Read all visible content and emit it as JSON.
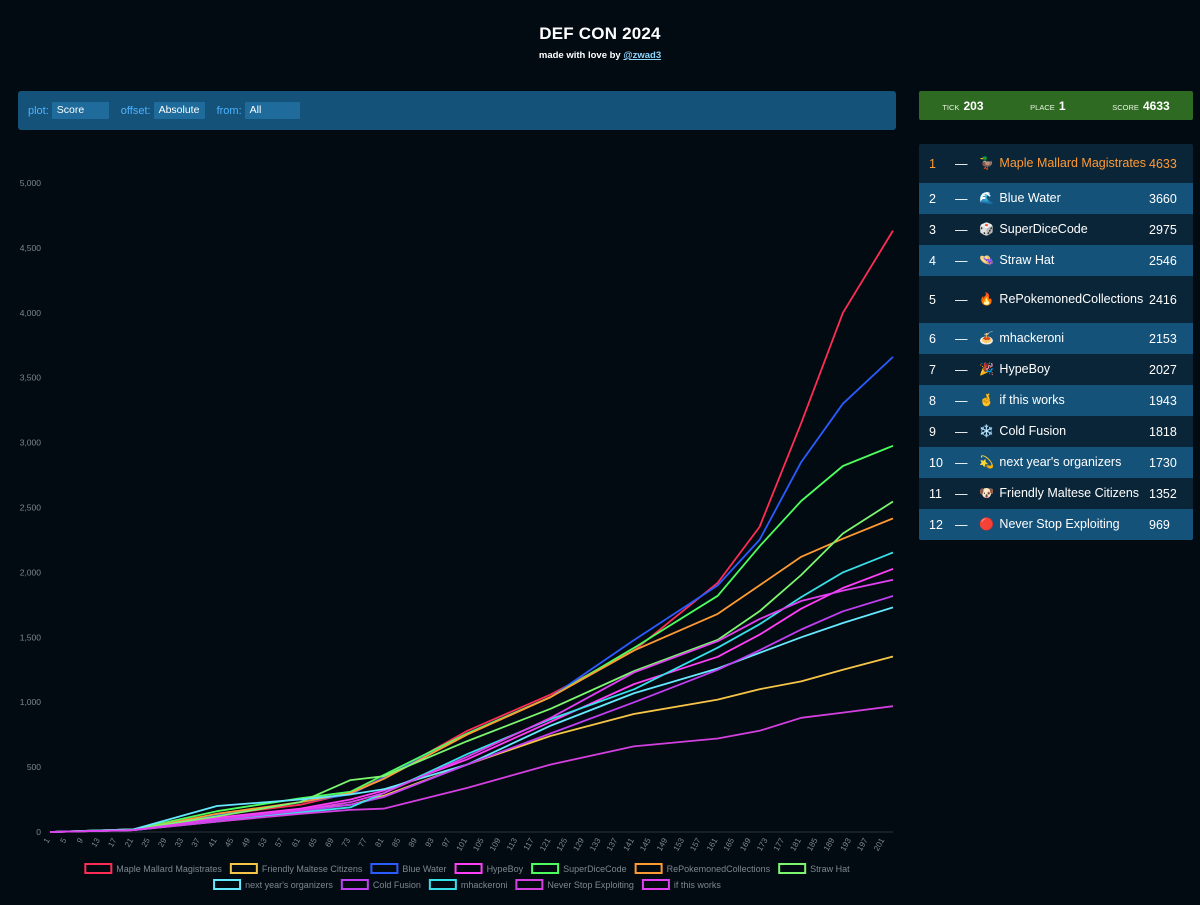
{
  "header": {
    "title": "DEF CON 2024",
    "byline": "made with love by ",
    "author": "@zwad3"
  },
  "controls": {
    "plot_label": "plot:",
    "plot_value": "Score",
    "offset_label": "offset:",
    "offset_value": "Absolute",
    "from_label": "from:",
    "from_value": "All"
  },
  "status": {
    "tick_label": "TICK",
    "tick": "203",
    "place_label": "PLACE",
    "place": "1",
    "score_label": "SCORE",
    "score": "4633"
  },
  "leaderboard": [
    {
      "rank": "1",
      "change": "—",
      "icon": "🦆",
      "team": "Maple Mallard Magistrates",
      "score": "4633"
    },
    {
      "rank": "2",
      "change": "—",
      "icon": "🌊",
      "team": "Blue Water",
      "score": "3660"
    },
    {
      "rank": "3",
      "change": "—",
      "icon": "🎲",
      "team": "SuperDiceCode",
      "score": "2975"
    },
    {
      "rank": "4",
      "change": "—",
      "icon": "👒",
      "team": "Straw Hat",
      "score": "2546"
    },
    {
      "rank": "5",
      "change": "—",
      "icon": "🔥",
      "team": "RePokemonedCollections",
      "score": "2416"
    },
    {
      "rank": "6",
      "change": "—",
      "icon": "🍝",
      "team": "mhackeroni",
      "score": "2153"
    },
    {
      "rank": "7",
      "change": "—",
      "icon": "🎉",
      "team": "HypeBoy",
      "score": "2027"
    },
    {
      "rank": "8",
      "change": "—",
      "icon": "🤞",
      "team": "if this works",
      "score": "1943"
    },
    {
      "rank": "9",
      "change": "—",
      "icon": "❄️",
      "team": "Cold Fusion",
      "score": "1818"
    },
    {
      "rank": "10",
      "change": "—",
      "icon": "💫",
      "team": "next year's organizers",
      "score": "1730"
    },
    {
      "rank": "11",
      "change": "—",
      "icon": "🐶",
      "team": "Friendly Maltese Citizens",
      "score": "1352"
    },
    {
      "rank": "12",
      "change": "—",
      "icon": "🔴",
      "team": "Never Stop Exploiting",
      "score": "969"
    }
  ],
  "chart_data": {
    "type": "line",
    "ylim": [
      0,
      5000
    ],
    "yticks": [
      0,
      500,
      1000,
      1500,
      2000,
      2500,
      3000,
      3500,
      4000,
      4500,
      5000
    ],
    "xlim": [
      1,
      203
    ],
    "xticks": [
      1,
      5,
      9,
      13,
      17,
      21,
      25,
      29,
      33,
      37,
      41,
      45,
      49,
      53,
      57,
      61,
      65,
      69,
      73,
      77,
      81,
      85,
      89,
      93,
      97,
      101,
      105,
      109,
      113,
      117,
      121,
      125,
      129,
      133,
      137,
      141,
      145,
      149,
      153,
      157,
      161,
      165,
      169,
      173,
      177,
      181,
      185,
      189,
      193,
      197,
      201
    ],
    "grid": false,
    "legend_position": "bottom",
    "series": [
      {
        "name": "Maple Mallard Magistrates",
        "color": "#ff2d55",
        "x": [
          1,
          21,
          41,
          61,
          73,
          81,
          101,
          121,
          141,
          161,
          171,
          181,
          191,
          203
        ],
        "values": [
          0,
          20,
          130,
          210,
          300,
          420,
          780,
          1060,
          1400,
          1920,
          2350,
          3150,
          4000,
          4633
        ]
      },
      {
        "name": "Friendly Maltese Citizens",
        "color": "#f7c548",
        "x": [
          1,
          21,
          41,
          61,
          73,
          81,
          101,
          121,
          141,
          161,
          171,
          181,
          191,
          203
        ],
        "values": [
          0,
          15,
          90,
          170,
          210,
          280,
          520,
          740,
          910,
          1020,
          1100,
          1160,
          1250,
          1352
        ]
      },
      {
        "name": "Blue Water",
        "color": "#2a5cff",
        "x": [
          1,
          21,
          41,
          61,
          73,
          81,
          101,
          121,
          141,
          161,
          171,
          181,
          191,
          203
        ],
        "values": [
          0,
          20,
          130,
          230,
          290,
          420,
          760,
          1040,
          1480,
          1900,
          2250,
          2850,
          3300,
          3660
        ]
      },
      {
        "name": "HypeBoy",
        "color": "#ff3ff5",
        "x": [
          1,
          21,
          41,
          61,
          73,
          81,
          101,
          121,
          141,
          161,
          171,
          181,
          191,
          203
        ],
        "values": [
          0,
          15,
          110,
          180,
          250,
          320,
          560,
          850,
          1140,
          1350,
          1520,
          1720,
          1880,
          2027
        ]
      },
      {
        "name": "SuperDiceCode",
        "color": "#4cff5e",
        "x": [
          1,
          21,
          41,
          61,
          73,
          81,
          101,
          121,
          141,
          161,
          171,
          181,
          191,
          203
        ],
        "values": [
          0,
          20,
          160,
          260,
          310,
          440,
          760,
          1040,
          1420,
          1820,
          2200,
          2550,
          2820,
          2975
        ]
      },
      {
        "name": "RePokemonedCollections",
        "color": "#ff9a33",
        "x": [
          1,
          21,
          41,
          61,
          73,
          81,
          101,
          121,
          141,
          161,
          171,
          181,
          191,
          203
        ],
        "values": [
          0,
          15,
          140,
          230,
          300,
          410,
          750,
          1040,
          1400,
          1680,
          1900,
          2120,
          2260,
          2416
        ]
      },
      {
        "name": "Straw Hat",
        "color": "#7cf56f",
        "x": [
          1,
          21,
          41,
          61,
          73,
          81,
          101,
          121,
          141,
          161,
          171,
          181,
          191,
          203
        ],
        "values": [
          0,
          20,
          120,
          230,
          400,
          430,
          700,
          950,
          1240,
          1480,
          1700,
          1980,
          2300,
          2546
        ]
      },
      {
        "name": "next year's organizers",
        "color": "#66e8ff",
        "x": [
          1,
          21,
          41,
          61,
          73,
          81,
          101,
          121,
          141,
          161,
          171,
          181,
          191,
          203
        ],
        "values": [
          0,
          20,
          200,
          250,
          290,
          330,
          520,
          820,
          1070,
          1260,
          1380,
          1500,
          1610,
          1730
        ]
      },
      {
        "name": "Cold Fusion",
        "color": "#c13ff2",
        "x": [
          1,
          21,
          41,
          61,
          73,
          81,
          101,
          121,
          141,
          161,
          171,
          181,
          191,
          203
        ],
        "values": [
          0,
          15,
          90,
          160,
          210,
          270,
          520,
          760,
          1000,
          1250,
          1400,
          1560,
          1700,
          1818
        ]
      },
      {
        "name": "mhackeroni",
        "color": "#38e1ea",
        "x": [
          1,
          21,
          41,
          61,
          73,
          81,
          101,
          121,
          141,
          161,
          171,
          181,
          191,
          203
        ],
        "values": [
          0,
          15,
          80,
          150,
          190,
          300,
          600,
          870,
          1100,
          1420,
          1600,
          1810,
          2000,
          2153
        ]
      },
      {
        "name": "Never Stop Exploiting",
        "color": "#d43fe0",
        "x": [
          1,
          21,
          41,
          61,
          73,
          81,
          101,
          121,
          141,
          161,
          171,
          181,
          191,
          203
        ],
        "values": [
          0,
          15,
          80,
          140,
          170,
          180,
          340,
          520,
          660,
          720,
          780,
          880,
          920,
          969
        ]
      },
      {
        "name": "if this works",
        "color": "#e040f0",
        "x": [
          1,
          21,
          41,
          61,
          73,
          81,
          101,
          121,
          141,
          161,
          171,
          181,
          191,
          203
        ],
        "values": [
          0,
          15,
          100,
          170,
          230,
          300,
          580,
          880,
          1230,
          1470,
          1640,
          1780,
          1860,
          1943
        ]
      }
    ]
  }
}
